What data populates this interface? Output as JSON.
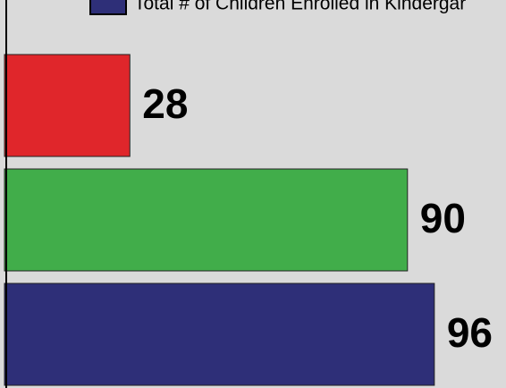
{
  "chart_data": {
    "type": "bar",
    "orientation": "horizontal",
    "values": [
      28,
      90,
      96
    ],
    "colors": [
      "#e0262b",
      "#41ad4a",
      "#2e2f78"
    ],
    "legend": [
      {
        "label": "Total # of Children Enrolled in Kindergar",
        "color": "#2e2f78"
      }
    ],
    "xlim": [
      0,
      112
    ]
  }
}
